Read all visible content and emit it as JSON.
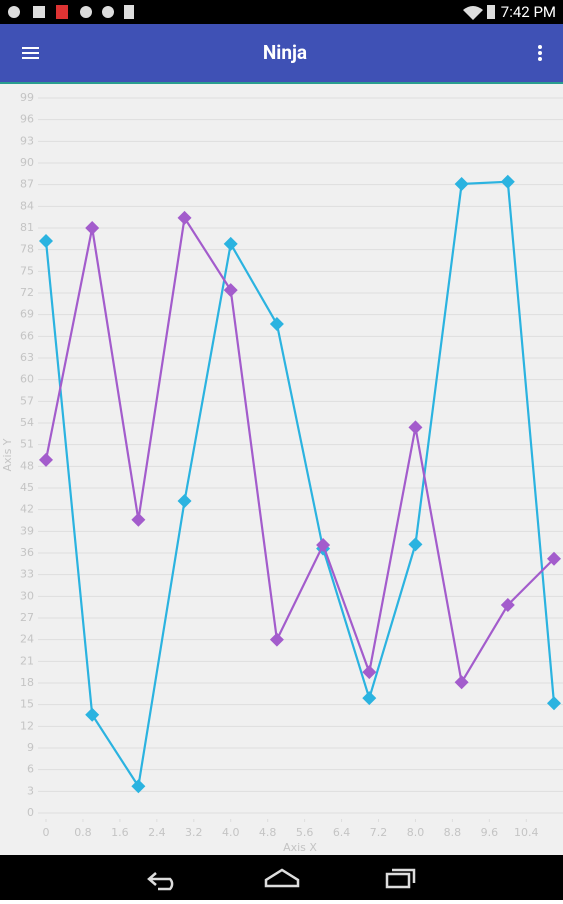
{
  "status_bar": {
    "time": "7:42 PM"
  },
  "app_bar": {
    "title": "Ninja"
  },
  "chart_data": {
    "type": "line",
    "x_label": "Axis X",
    "y_label": "Axis Y",
    "x": [
      0,
      1,
      2,
      3,
      4,
      5,
      6,
      7,
      8,
      9,
      10,
      11
    ],
    "series": [
      {
        "color": "#2bb3e0",
        "values": [
          79.2,
          13.6,
          3.7,
          43.2,
          78.8,
          67.7,
          36.6,
          15.9,
          37.2,
          87.1,
          87.4,
          15.2
        ]
      },
      {
        "color": "#a35ccc",
        "values": [
          48.9,
          81,
          40.6,
          82.4,
          72.4,
          24,
          37.1,
          19.5,
          53.4,
          18.1,
          28.8,
          35.2
        ]
      }
    ],
    "xlim": [
      0,
      11
    ],
    "xticks": [
      0,
      0.8,
      1.6,
      2.4,
      3.2,
      {
        "value": 4,
        "label": "4.0"
      },
      4.8,
      5.6,
      6.4,
      7.2,
      {
        "value": 8,
        "label": "8.0"
      },
      8.8,
      9.6,
      10.4
    ],
    "ylim": [
      0,
      99
    ],
    "yticks": [
      0,
      3,
      6,
      9,
      12,
      15,
      18,
      21,
      24,
      27,
      30,
      33,
      36,
      39,
      42,
      45,
      48,
      51,
      54,
      57,
      60,
      63,
      66,
      69,
      72,
      75,
      78,
      81,
      84,
      87,
      90,
      93,
      96,
      99
    ],
    "grid": true
  }
}
